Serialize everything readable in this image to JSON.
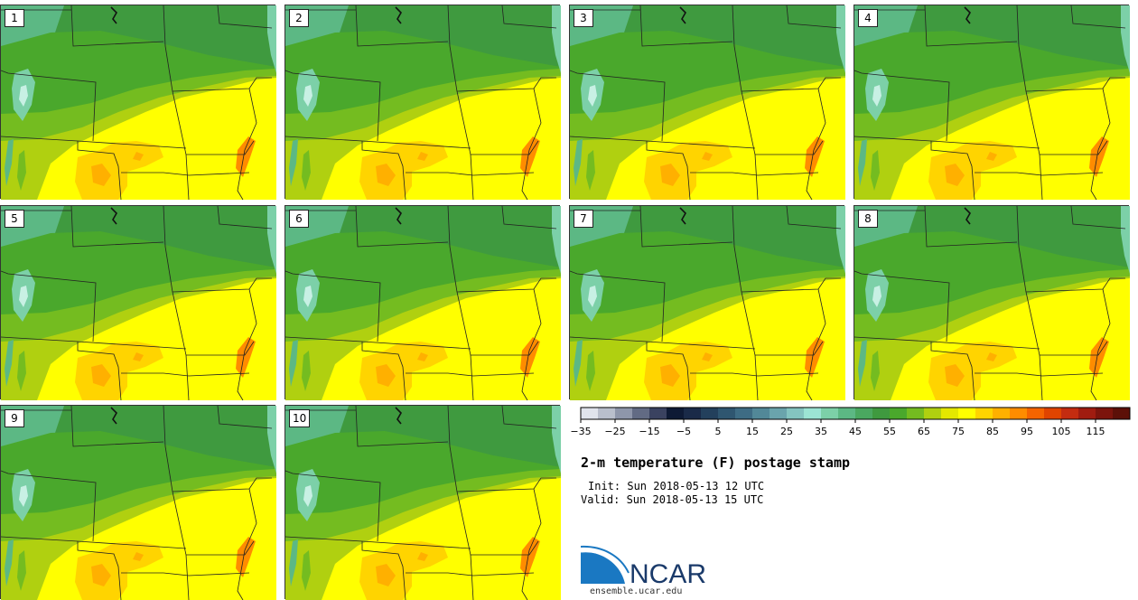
{
  "members": [
    "1",
    "2",
    "3",
    "4",
    "5",
    "6",
    "7",
    "8",
    "9",
    "10"
  ],
  "colorbar": {
    "colors": [
      "#e0e4ec",
      "#b9bfcc",
      "#8e96aa",
      "#626b84",
      "#3a4260",
      "#0e1a35",
      "#1a2a48",
      "#23405c",
      "#2f5670",
      "#3e6c84",
      "#528898",
      "#6aa4ac",
      "#84c4c0",
      "#9ce4d4",
      "#7cd0a8",
      "#5cb884",
      "#4aa860",
      "#3f9a3f",
      "#4aa82c",
      "#74bc20",
      "#b0d010",
      "#e4e800",
      "#ffff00",
      "#ffd400",
      "#ffb000",
      "#ff8c00",
      "#f56400",
      "#e04400",
      "#c42c10",
      "#a01c10",
      "#7c140c",
      "#5c1008"
    ],
    "tick_labels": [
      "−35",
      "−25",
      "−15",
      "−5",
      "5",
      "15",
      "25",
      "35",
      "45",
      "55",
      "65",
      "75",
      "85",
      "95",
      "105",
      "115"
    ]
  },
  "title": "2-m temperature (F) postage stamp",
  "init_text": "Init: Sun 2018-05-13 12 UTC",
  "valid_text": "Valid: Sun 2018-05-13 15 UTC",
  "logo": {
    "name": "NCAR",
    "url": "ensemble.ucar.edu"
  }
}
